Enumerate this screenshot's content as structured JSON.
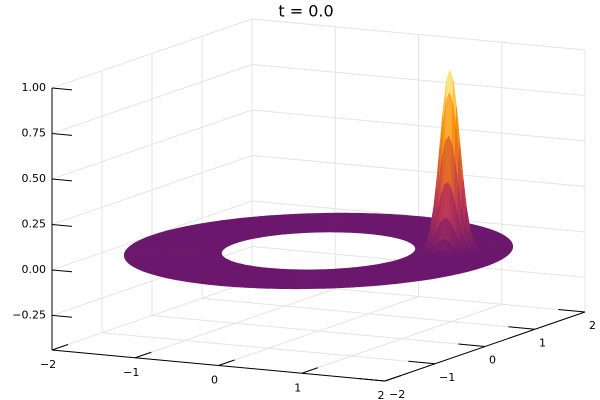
{
  "chart_data": {
    "type": "surface",
    "title": "t = 0.0",
    "xlim": [
      -2,
      2
    ],
    "xticks": [
      {
        "value": -2,
        "label": "−2"
      },
      {
        "value": -1,
        "label": "−1"
      },
      0,
      1,
      2
    ],
    "ylim": [
      -2,
      2
    ],
    "yticks": [
      {
        "value": -2,
        "label": "−2"
      },
      {
        "value": -1,
        "label": "−1"
      },
      0,
      1,
      2
    ],
    "zlim": [
      -0.44,
      1.0
    ],
    "zticks": [
      {
        "value": -0.25,
        "label": "−0.25"
      },
      {
        "value": 0,
        "label": "0.00"
      },
      {
        "value": 0.25,
        "label": "0.25"
      },
      {
        "value": 0.5,
        "label": "0.50"
      },
      {
        "value": 0.75,
        "label": "0.75"
      },
      {
        "value": 1,
        "label": "1.00"
      }
    ],
    "grid": true,
    "colormap": "inferno",
    "surface": {
      "inner_radius": 1,
      "outer_radius": 2,
      "peak": {
        "x": 1.25,
        "y": 0.55,
        "z": 1,
        "width": 0.1
      }
    }
  }
}
